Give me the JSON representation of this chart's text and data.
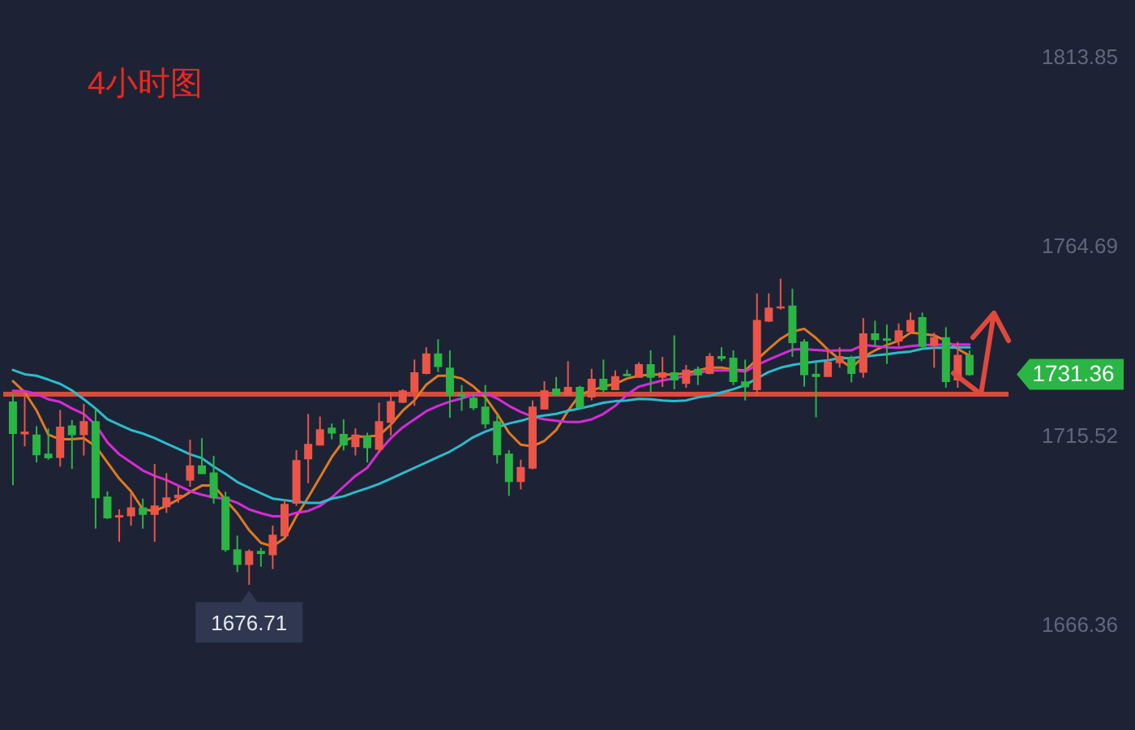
{
  "chart_data": {
    "type": "candlestick",
    "title": "4小时图",
    "categories": [
      null,
      null,
      null,
      null,
      null,
      null,
      null,
      null,
      null,
      null,
      null,
      null,
      null,
      null,
      null,
      null,
      null,
      null,
      null,
      null,
      null,
      null,
      null,
      null,
      null,
      null,
      null,
      null,
      null,
      null,
      null,
      null,
      null,
      null,
      null,
      null,
      null,
      null,
      null,
      null,
      null,
      null,
      null,
      null,
      null,
      null,
      null,
      null,
      null,
      null,
      null,
      null,
      null,
      null,
      null,
      null,
      null,
      null,
      null,
      null,
      null,
      null,
      null,
      null,
      null,
      null,
      null,
      null,
      null,
      null,
      null,
      null,
      null,
      null,
      null,
      null,
      null,
      null,
      null,
      null,
      null,
      null
    ],
    "ohlc": [
      [
        1724.1,
        1726.2,
        1702.6,
        1716.1
      ],
      [
        1716.0,
        1726.7,
        1712.7,
        1716.3
      ],
      [
        1715.5,
        1717.9,
        1708.5,
        1710.6
      ],
      [
        1710.6,
        1717.3,
        1709.2,
        1709.8
      ],
      [
        1709.9,
        1722.1,
        1707.4,
        1717.6
      ],
      [
        1717.9,
        1719.5,
        1706.8,
        1715.8
      ],
      [
        1715.8,
        1723.7,
        1710.3,
        1719.0
      ],
      [
        1719.0,
        1722.3,
        1691.3,
        1699.4
      ],
      [
        1699.4,
        1701.0,
        1693.8,
        1694.2
      ],
      [
        1694.4,
        1696.3,
        1687.9,
        1694.6
      ],
      [
        1694.7,
        1700.8,
        1692.1,
        1696.6
      ],
      [
        1696.6,
        1699.1,
        1691.3,
        1695.1
      ],
      [
        1695.1,
        1708.1,
        1687.9,
        1697.1
      ],
      [
        1697.1,
        1705.7,
        1695.4,
        1699.2
      ],
      [
        1699.4,
        1702.2,
        1698.0,
        1699.9
      ],
      [
        1704.0,
        1714.4,
        1702.2,
        1707.5
      ],
      [
        1707.5,
        1714.8,
        1705.5,
        1705.7
      ],
      [
        1705.7,
        1710.2,
        1697.8,
        1699.4
      ],
      [
        1699.4,
        1700.9,
        1685.3,
        1685.9
      ],
      [
        1685.7,
        1689.5,
        1680.0,
        1682.1
      ],
      [
        1682.1,
        1685.9,
        1676.71,
        1685.3
      ],
      [
        1685.3,
        1686.3,
        1681.4,
        1684.9
      ],
      [
        1684.6,
        1692.1,
        1680.8,
        1689.5
      ],
      [
        1689.5,
        1698.8,
        1689.1,
        1697.5
      ],
      [
        1698.0,
        1711.7,
        1697.2,
        1708.9
      ],
      [
        1709.5,
        1721.1,
        1703.1,
        1713.1
      ],
      [
        1713.1,
        1720.4,
        1712.9,
        1716.9
      ],
      [
        1717.3,
        1718.6,
        1714.5,
        1716.2
      ],
      [
        1715.7,
        1719.7,
        1711.6,
        1713.1
      ],
      [
        1712.7,
        1717.3,
        1710.3,
        1715.5
      ],
      [
        1715.2,
        1716.2,
        1708.5,
        1712.4
      ],
      [
        1712.0,
        1724.0,
        1711.0,
        1719.0
      ],
      [
        1719.0,
        1726.7,
        1715.5,
        1724.2
      ],
      [
        1724.2,
        1727.5,
        1723.9,
        1727.0
      ],
      [
        1727.0,
        1735.2,
        1723.2,
        1731.7
      ],
      [
        1731.7,
        1738.4,
        1731.4,
        1736.6
      ],
      [
        1736.6,
        1740.5,
        1732.0,
        1733.5
      ],
      [
        1732.9,
        1737.6,
        1720.1,
        1726.1
      ],
      [
        1726.2,
        1728.6,
        1721.9,
        1725.8
      ],
      [
        1725.1,
        1726.3,
        1722.1,
        1722.8
      ],
      [
        1722.8,
        1728.6,
        1717.3,
        1718.6
      ],
      [
        1719.0,
        1720.7,
        1708.2,
        1710.6
      ],
      [
        1710.6,
        1711.7,
        1699.8,
        1703.6
      ],
      [
        1703.6,
        1709.2,
        1701.5,
        1707.1
      ],
      [
        1707.1,
        1724.6,
        1706.7,
        1722.8
      ],
      [
        1722.5,
        1729.6,
        1722.3,
        1727.0
      ],
      [
        1727.5,
        1730.7,
        1726.0,
        1726.1
      ],
      [
        1726.1,
        1734.8,
        1726.0,
        1727.9
      ],
      [
        1727.9,
        1728.4,
        1722.5,
        1722.8
      ],
      [
        1725.6,
        1732.8,
        1724.6,
        1730.0
      ],
      [
        1730.0,
        1735.2,
        1726.7,
        1727.5
      ],
      [
        1727.5,
        1732.4,
        1727.4,
        1730.7
      ],
      [
        1731.3,
        1732.6,
        1730.9,
        1731.1
      ],
      [
        1730.7,
        1734.5,
        1730.6,
        1733.8
      ],
      [
        1733.8,
        1737.6,
        1726.7,
        1730.7
      ],
      [
        1730.7,
        1735.9,
        1728.1,
        1731.7
      ],
      [
        1731.7,
        1741.5,
        1727.5,
        1730.0
      ],
      [
        1729.1,
        1733.8,
        1727.9,
        1732.4
      ],
      [
        1732.6,
        1733.4,
        1728.6,
        1731.3
      ],
      [
        1731.7,
        1736.9,
        1731.4,
        1735.9
      ],
      [
        1735.9,
        1738.4,
        1734.8,
        1735.6
      ],
      [
        1735.5,
        1737.6,
        1728.6,
        1729.6
      ],
      [
        1729.3,
        1735.2,
        1724.6,
        1728.2
      ],
      [
        1727.5,
        1752.4,
        1725.8,
        1745.3
      ],
      [
        1745.3,
        1752.4,
        1745.0,
        1748.5
      ],
      [
        1748.7,
        1756.2,
        1748.2,
        1748.8
      ],
      [
        1749.0,
        1753.6,
        1735.9,
        1739.7
      ],
      [
        1739.7,
        1740.5,
        1728.2,
        1731.4
      ],
      [
        1731.3,
        1734.5,
        1720.2,
        1730.9
      ],
      [
        1730.9,
        1738.0,
        1730.8,
        1734.5
      ],
      [
        1734.5,
        1738.4,
        1733.1,
        1735.9
      ],
      [
        1735.5,
        1736.2,
        1729.3,
        1731.7
      ],
      [
        1732.0,
        1746.0,
        1730.5,
        1741.8
      ],
      [
        1741.8,
        1745.3,
        1738.7,
        1740.5
      ],
      [
        1740.5,
        1744.3,
        1734.1,
        1740.3
      ],
      [
        1740.1,
        1744.6,
        1738.7,
        1742.6
      ],
      [
        1742.6,
        1747.4,
        1742.2,
        1745.3
      ],
      [
        1746.0,
        1747.4,
        1738.0,
        1738.7
      ],
      [
        1739.0,
        1742.2,
        1733.1,
        1740.8
      ],
      [
        1740.8,
        1743.6,
        1727.9,
        1729.6
      ],
      [
        1730.0,
        1739.8,
        1727.9,
        1736.2
      ],
      [
        1736.2,
        1737.6,
        1731.0,
        1731.36
      ]
    ],
    "colors": [
      "#2bb544",
      "#eb5547",
      "#2bb544",
      "#2bb544",
      "#eb5547",
      "#2bb544",
      "#eb5547",
      "#2bb544",
      "#2bb544",
      "#eb5547",
      "#eb5547",
      "#2bb544",
      "#eb5547",
      "#eb5547",
      "#eb5547",
      "#eb5547",
      "#2bb544",
      "#2bb544",
      "#2bb544",
      "#2bb544",
      "#eb5547",
      "#2bb544",
      "#eb5547",
      "#eb5547",
      "#eb5547",
      "#eb5547",
      "#eb5547",
      "#2bb544",
      "#2bb544",
      "#eb5547",
      "#2bb544",
      "#eb5547",
      "#eb5547",
      "#eb5547",
      "#eb5547",
      "#eb5547",
      "#2bb544",
      "#2bb544",
      "#2bb544",
      "#2bb544",
      "#2bb544",
      "#2bb544",
      "#2bb544",
      "#eb5547",
      "#eb5547",
      "#eb5547",
      "#2bb544",
      "#eb5547",
      "#2bb544",
      "#eb5547",
      "#2bb544",
      "#eb5547",
      "#2bb544",
      "#eb5547",
      "#2bb544",
      "#eb5547",
      "#2bb544",
      "#eb5547",
      "#2bb544",
      "#eb5547",
      "#2bb544",
      "#2bb544",
      "#2bb544",
      "#eb5547",
      "#eb5547",
      "#eb5547",
      "#2bb544",
      "#2bb544",
      "#2bb544",
      "#eb5547",
      "#eb5547",
      "#2bb544",
      "#eb5547",
      "#2bb544",
      "#2bb544",
      "#eb5547",
      "#eb5547",
      "#2bb544",
      "#eb5547",
      "#2bb544",
      "#eb5547",
      "#2bb544"
    ],
    "series": [
      {
        "type": "line",
        "color": "#e07a1f",
        "values": [
          1729.6,
          1726.7,
          1722.0,
          1715.7,
          1714.5,
          1714.5,
          1714.8,
          1712.7,
          1708.5,
          1704.3,
          1701.0,
          1696.3,
          1695.9,
          1697.2,
          1698.9,
          1700.8,
          1702.5,
          1702.5,
          1698.8,
          1695.3,
          1690.9,
          1687.6,
          1686.7,
          1688.8,
          1694.5,
          1699.4,
          1704.6,
          1709.9,
          1714.1,
          1715.2,
          1715.2,
          1715.5,
          1718.3,
          1721.9,
          1724.6,
          1728.7,
          1731.0,
          1731.0,
          1730.3,
          1728.2,
          1725.4,
          1721.1,
          1716.2,
          1713.1,
          1712.7,
          1714.1,
          1716.9,
          1721.9,
          1726.1,
          1727.2,
          1728.2,
          1728.9,
          1730.3,
          1731.0,
          1731.3,
          1731.3,
          1731.3,
          1731.7,
          1732.4,
          1733.1,
          1733.1,
          1732.6,
          1732.4,
          1735.2,
          1738.0,
          1740.6,
          1742.5,
          1743.2,
          1740.8,
          1737.8,
          1735.2,
          1733.1,
          1735.9,
          1737.6,
          1739.0,
          1740.1,
          1742.2,
          1741.9,
          1741.5,
          1740.1,
          1738.0,
          1736.2
        ]
      },
      {
        "type": "line",
        "color": "#d82ad8",
        "values": [
          1727.1,
          1727.0,
          1726.3,
          1724.9,
          1724.2,
          1722.5,
          1721.1,
          1718.3,
          1713.7,
          1710.6,
          1708.5,
          1706.4,
          1705.0,
          1703.9,
          1702.5,
          1701.0,
          1700.1,
          1699.4,
          1699.1,
          1698.0,
          1696.3,
          1695.3,
          1694.5,
          1694.5,
          1695.4,
          1695.9,
          1697.2,
          1699.4,
          1702.2,
          1705.0,
          1707.1,
          1711.3,
          1714.8,
          1717.6,
          1719.7,
          1721.8,
          1723.2,
          1724.3,
          1725.1,
          1726.1,
          1726.5,
          1725.1,
          1723.2,
          1721.6,
          1720.4,
          1719.7,
          1719.3,
          1719.0,
          1719.0,
          1719.7,
          1721.1,
          1723.2,
          1726.1,
          1728.2,
          1729.0,
          1729.8,
          1730.3,
          1731.0,
          1731.7,
          1732.4,
          1732.4,
          1732.4,
          1732.1,
          1733.8,
          1735.2,
          1736.5,
          1737.8,
          1737.9,
          1737.7,
          1737.5,
          1737.6,
          1737.6,
          1739.0,
          1738.7,
          1738.4,
          1738.3,
          1738.7,
          1739.0,
          1739.0,
          1739.1,
          1739.1,
          1739.1
        ]
      },
      {
        "type": "line",
        "color": "#2bbccc",
        "values": [
          1732.5,
          1731.4,
          1731.0,
          1730.0,
          1728.9,
          1727.2,
          1724.9,
          1722.5,
          1719.7,
          1718.3,
          1716.9,
          1716.0,
          1714.8,
          1713.4,
          1712.0,
          1710.6,
          1709.6,
          1707.4,
          1705.5,
          1703.4,
          1701.9,
          1700.5,
          1699.1,
          1698.7,
          1698.3,
          1698.0,
          1698.0,
          1699.1,
          1699.7,
          1700.8,
          1701.8,
          1702.9,
          1704.3,
          1705.7,
          1707.1,
          1708.5,
          1709.9,
          1711.3,
          1713.1,
          1715.1,
          1716.5,
          1717.6,
          1718.6,
          1719.3,
          1720.2,
          1720.7,
          1721.1,
          1721.9,
          1722.5,
          1723.2,
          1724.0,
          1724.4,
          1724.6,
          1725.0,
          1724.9,
          1724.6,
          1724.4,
          1724.6,
          1725.4,
          1725.8,
          1726.7,
          1727.5,
          1728.6,
          1730.3,
          1732.0,
          1733.1,
          1733.8,
          1734.3,
          1734.7,
          1735.0,
          1735.6,
          1735.6,
          1735.9,
          1736.3,
          1736.6,
          1737.0,
          1737.3,
          1738.0,
          1738.3,
          1738.3,
          1738.4,
          1738.4
        ]
      }
    ],
    "ylim": [
      1639.0,
      1828.6
    ],
    "yticks": [
      1666.36,
      1715.52,
      1764.69,
      1813.85
    ],
    "ref_lines": [
      {
        "axis": "y",
        "value": 1726.2,
        "color": "#d94b3d"
      }
    ],
    "annotations": [
      {
        "text": "1676.71",
        "y": 1676.71
      },
      "1731.36"
    ]
  }
}
